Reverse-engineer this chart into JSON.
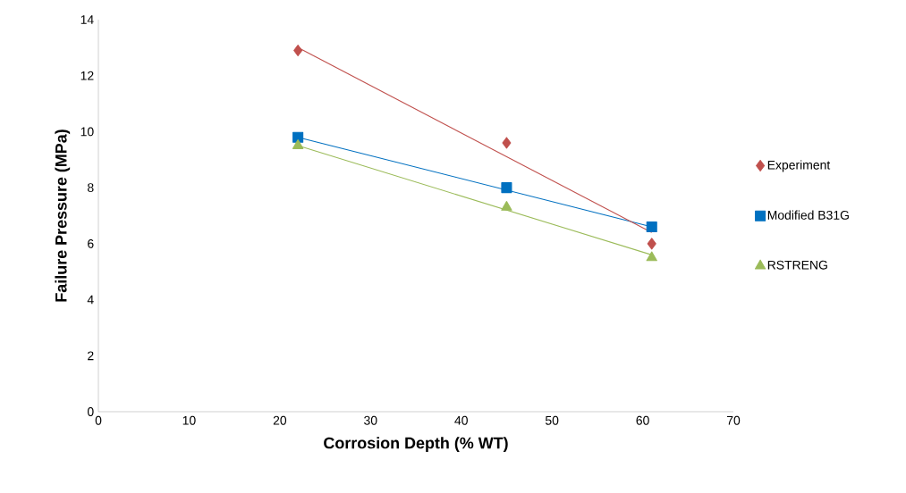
{
  "chart_data": {
    "type": "scatter",
    "xlabel": "Corrosion Depth (% WT)",
    "ylabel": "Failure Pressure (MPa)",
    "xlim": [
      0,
      70
    ],
    "ylim": [
      0,
      14
    ],
    "xticks": [
      0,
      10,
      20,
      30,
      40,
      50,
      60,
      70
    ],
    "yticks": [
      0,
      2,
      4,
      6,
      8,
      10,
      12,
      14
    ],
    "grid": false,
    "legend": "right",
    "series": [
      {
        "name": "Experiment",
        "color": "#c0504d",
        "marker": "diamond",
        "x": [
          22,
          45,
          61
        ],
        "values": [
          12.9,
          9.6,
          6.0
        ]
      },
      {
        "name": "Modified B31G",
        "color": "#0070c0",
        "marker": "square",
        "x": [
          22,
          45,
          61
        ],
        "values": [
          9.8,
          8.0,
          6.6
        ]
      },
      {
        "name": "RSTRENG",
        "color": "#9bbb59",
        "marker": "triangle",
        "x": [
          22,
          45,
          61
        ],
        "values": [
          9.5,
          7.3,
          5.5
        ]
      },
      {
        "type": "line",
        "color": "#0070c0",
        "marker": "none",
        "x": [
          22,
          61
        ],
        "values": [
          9.8,
          6.6
        ]
      },
      {
        "type": "line",
        "color": "#9bbb59",
        "marker": "none",
        "x": [
          22,
          61
        ],
        "values": [
          9.5,
          5.6
        ]
      },
      {
        "type": "line",
        "color": "#c0504d",
        "marker": "none",
        "x": [
          22,
          61
        ],
        "values": [
          13.0,
          6.4
        ]
      }
    ]
  }
}
